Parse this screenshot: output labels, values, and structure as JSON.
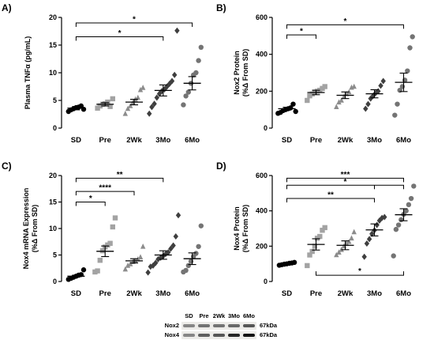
{
  "colors": {
    "SD": "#000000",
    "Pre": "#a3a3a3",
    "2Wk": "#8c8c8c",
    "3Mo": "#3f3f3f",
    "6Mo": "#747474"
  },
  "markers": {
    "SD": "circle",
    "Pre": "square",
    "2Wk": "triangle",
    "3Mo": "diamond",
    "6Mo": "circle"
  },
  "chart_data": [
    {
      "panel": "A)",
      "type": "scatter",
      "ylabel": "Plasma TNFα (pg/mL)",
      "categories": [
        "SD",
        "Pre",
        "2Wk",
        "3Mo",
        "6Mo"
      ],
      "yticks": [
        "0",
        "5",
        "10",
        "15",
        "20"
      ],
      "ylim": [
        0,
        20
      ],
      "points": [
        [
          3.0,
          3.3,
          3.5,
          3.7,
          3.8,
          4.0,
          3.4
        ],
        [
          3.6,
          4.0,
          4.3,
          4.4,
          4.7,
          3.9,
          5.3
        ],
        [
          2.6,
          3.5,
          4.0,
          4.6,
          5.2,
          5.5,
          6.9,
          7.3
        ],
        [
          2.6,
          3.8,
          4.4,
          5.5,
          6.2,
          6.7,
          7.0,
          7.5,
          8.0,
          8.5,
          9.6,
          17.6
        ],
        [
          4.2,
          5.8,
          6.5,
          8.1,
          9.6,
          10.0,
          12.2,
          14.6
        ]
      ],
      "means": [
        3.6,
        4.3,
        4.7,
        6.8,
        8.1
      ],
      "sems": [
        0.3,
        0.3,
        0.5,
        1.0,
        1.2
      ],
      "brackets": [
        {
          "from": 0,
          "to": 4,
          "y": 19.0,
          "label": "*"
        },
        {
          "from": 0,
          "to": 3,
          "y": 16.5,
          "label": "*"
        }
      ]
    },
    {
      "panel": "B)",
      "type": "scatter",
      "ylabel": "Nox2 Protein\n(%Δ From SD)",
      "categories": [
        "SD",
        "Pre",
        "2Wk",
        "3Mo",
        "6Mo"
      ],
      "yticks": [
        "0",
        "200",
        "400",
        "600"
      ],
      "ylim": [
        0,
        600
      ],
      "points": [
        [
          80,
          85,
          95,
          100,
          105,
          110,
          130,
          90
        ],
        [
          150,
          175,
          185,
          195,
          200,
          205,
          215,
          225
        ],
        [
          115,
          140,
          150,
          170,
          185,
          195,
          220,
          225
        ],
        [
          105,
          130,
          160,
          175,
          190,
          200,
          230,
          255
        ],
        [
          70,
          130,
          205,
          225,
          260,
          310,
          435,
          495
        ]
      ],
      "means": [
        105,
        193,
        178,
        186,
        248
      ],
      "sems": [
        8,
        12,
        18,
        22,
        50
      ],
      "brackets": [
        {
          "from": 0,
          "to": 1,
          "y": 505,
          "label": "*"
        },
        {
          "from": 0,
          "to": 4,
          "y": 560,
          "label": "*"
        }
      ]
    },
    {
      "panel": "C)",
      "type": "scatter",
      "ylabel": "Nox4 mRNA Expression\n(%Δ From SD)",
      "categories": [
        "SD",
        "Pre",
        "2Wk",
        "3Mo",
        "6Mo"
      ],
      "yticks": [
        "0",
        "5",
        "10",
        "15",
        "20"
      ],
      "ylim": [
        0,
        20
      ],
      "points": [
        [
          0.4,
          0.6,
          0.8,
          1.0,
          1.2,
          1.3,
          2.2
        ],
        [
          1.8,
          2.0,
          4.0,
          5.8,
          6.5,
          6.9,
          7.2,
          10.3,
          12.0
        ],
        [
          2.3,
          3.0,
          3.3,
          3.7,
          3.9,
          4.2,
          4.6,
          6.6
        ],
        [
          1.7,
          2.8,
          3.0,
          3.5,
          4.2,
          4.5,
          4.8,
          5.2,
          5.5,
          6.2,
          6.8,
          8.5,
          12.5
        ],
        [
          1.8,
          2.1,
          3.0,
          3.8,
          4.7,
          5.3,
          6.6,
          10.5
        ]
      ],
      "means": [
        1.0,
        5.7,
        3.9,
        5.0,
        4.3
      ],
      "sems": [
        0.2,
        1.0,
        0.4,
        0.8,
        1.1
      ],
      "brackets": [
        {
          "from": 0,
          "to": 3,
          "y": 19.5,
          "label": "**"
        },
        {
          "from": 0,
          "to": 2,
          "y": 17.0,
          "label": "****"
        },
        {
          "from": 0,
          "to": 1,
          "y": 15.0,
          "label": "*"
        }
      ]
    },
    {
      "panel": "D)",
      "type": "scatter",
      "ylabel": "Nox4 Protein\n(%Δ From SD)",
      "categories": [
        "SD",
        "Pre",
        "2Wk",
        "3Mo",
        "6Mo"
      ],
      "yticks": [
        "0",
        "200",
        "400",
        "600"
      ],
      "ylim": [
        0,
        600
      ],
      "points": [
        [
          92,
          95,
          98,
          100,
          103,
          105,
          108
        ],
        [
          90,
          150,
          170,
          200,
          245,
          255,
          290,
          305
        ],
        [
          150,
          165,
          180,
          200,
          215,
          225,
          245,
          280
        ],
        [
          140,
          215,
          240,
          270,
          290,
          320,
          345,
          360,
          365
        ],
        [
          145,
          295,
          320,
          350,
          380,
          400,
          435,
          470,
          540
        ]
      ],
      "means": [
        100,
        210,
        205,
        292,
        378
      ],
      "sems": [
        5,
        32,
        25,
        34,
        34
      ],
      "brackets": [
        {
          "from": 0,
          "to": 4,
          "y": 585,
          "label": "***"
        },
        {
          "from": 0,
          "to": 4,
          "y": 545,
          "label": "*",
          "extraTick": 3
        },
        {
          "from": 0,
          "to": 3,
          "y": 470,
          "label": "**"
        },
        {
          "from": 1,
          "to": 4,
          "y": 35,
          "label": "*",
          "below": true
        }
      ]
    }
  ],
  "blot": {
    "headers": [
      "SD",
      "Pre",
      "2Wk",
      "3Mo",
      "6Mo"
    ],
    "rows": [
      {
        "label": "Nox2",
        "kda": "67kDa",
        "intensity": [
          0.35,
          0.45,
          0.45,
          0.5,
          0.6
        ]
      },
      {
        "label": "Nox4",
        "kda": "67kDa",
        "intensity": [
          0.35,
          0.55,
          0.6,
          0.85,
          0.95
        ]
      }
    ]
  }
}
